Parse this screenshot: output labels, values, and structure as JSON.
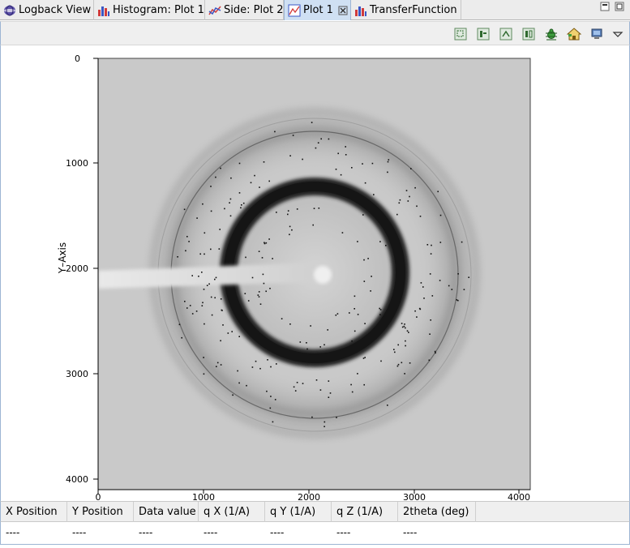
{
  "tabs": [
    {
      "label": "Logback View",
      "icon": "logback-icon"
    },
    {
      "label": "Histogram: Plot 1",
      "icon": "histogram-icon"
    },
    {
      "label": "Side: Plot 2",
      "icon": "line-plot-icon"
    },
    {
      "label": "Plot 1",
      "icon": "image-plot-icon",
      "active": true
    },
    {
      "label": "TransferFunction",
      "icon": "histogram-icon"
    }
  ],
  "toolbar": {
    "buttons": [
      "zoom-icon",
      "pan-icon",
      "reset-zoom-icon",
      "fit-icon",
      "settings-bug-icon",
      "home-icon",
      "display-icon",
      "dropdown-menu-icon"
    ]
  },
  "plot": {
    "y_axis_label": "Y–Axis",
    "x_ticks": [
      "0",
      "1000",
      "2000",
      "3000",
      "4000"
    ],
    "y_ticks": [
      "0",
      "1000",
      "2000",
      "3000",
      "4000"
    ]
  },
  "status": {
    "columns": [
      "X Position",
      "Y Position",
      "Data value",
      "q X (1/A)",
      "q Y (1/A)",
      "q Z (1/A)",
      "2theta (deg)"
    ],
    "values": [
      "----",
      "----",
      "----",
      "----",
      "----",
      "----",
      "----"
    ]
  },
  "colors": {
    "active_tab": "#cfe0f3",
    "tab_border": "#9db5d3",
    "image_background": "#c8c8c8",
    "ring_dark": "#1a1a1a"
  }
}
